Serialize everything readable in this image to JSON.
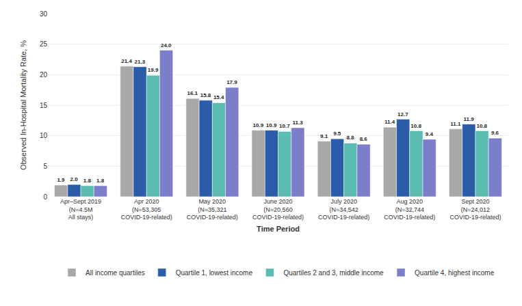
{
  "chart_data": {
    "type": "bar",
    "categories": [
      "Apr–Sept 2019\n(N=4.5M\nAll stays)",
      "Apr 2020\n(N=53,305\nCOVID-19-related)",
      "May 2020\n(N=35,321\nCOVID-19-related)",
      "June 2020\n(N=20,560\nCOVID-19-related)",
      "July 2020\n(N=34,542\nCOVID-19-related)",
      "Aug 2020\n(N=32,744\nCOVID-19-related)",
      "Sept 2020\n(N=24,012\nCOVID-19-related)"
    ],
    "series": [
      {
        "name": "All income quartiles",
        "color": "#a8a8a8",
        "values": [
          1.9,
          21.4,
          16.1,
          10.9,
          9.1,
          11.4,
          11.1
        ],
        "value_labels": [
          "1.9",
          "21.4",
          "16.1",
          "10.9",
          "9.1",
          "11.4",
          "11.1"
        ]
      },
      {
        "name": "Quartile 1, lowest income",
        "color": "#2b5ca8",
        "values": [
          2.0,
          21.3,
          15.8,
          10.9,
          9.5,
          12.7,
          11.9
        ],
        "value_labels": [
          "2.0",
          "21.3",
          "15.8",
          "10.9",
          "9.5",
          "12.7",
          "11.9"
        ]
      },
      {
        "name": "Quartiles 2 and 3, middle income",
        "color": "#5dbcb2",
        "values": [
          1.8,
          19.9,
          15.4,
          10.7,
          8.8,
          10.8,
          10.8
        ],
        "value_labels": [
          "1.8",
          "19.9",
          "15.4",
          "10.7",
          "8.8",
          "10.8",
          "10.8"
        ]
      },
      {
        "name": "Quartile 4, highest income",
        "color": "#7b7ec8",
        "values": [
          1.8,
          24.0,
          17.9,
          11.3,
          8.6,
          9.4,
          9.6
        ],
        "value_labels": [
          "1.8",
          "24.0",
          "17.9",
          "11.3",
          "8.6",
          "9.4",
          "9.6"
        ]
      }
    ],
    "xlabel": "Time Period",
    "ylabel": "Observed In-Hospital Mortality Rate, %",
    "ylim": [
      0,
      30
    ],
    "yticks": [
      0,
      5,
      10,
      15,
      20,
      25,
      30
    ],
    "grid": true,
    "legend": "bottom",
    "data_labels": true
  }
}
